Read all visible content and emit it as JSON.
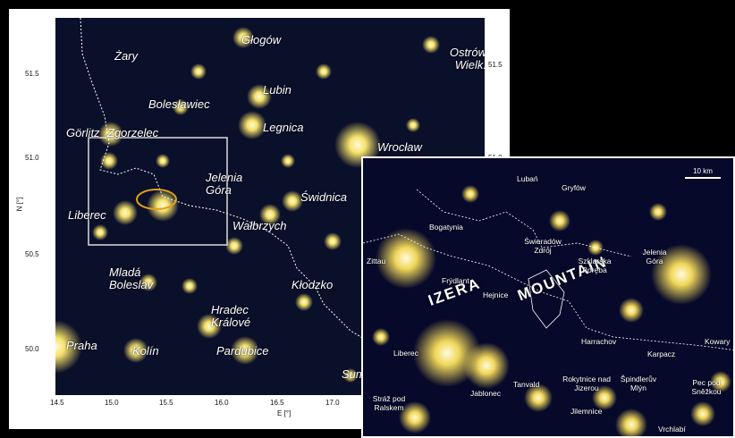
{
  "main_map": {
    "cities": [
      "Żary",
      "Głogów",
      "Ostrów Wielk.",
      "Lubin",
      "Bolesławiec",
      "Görlitz",
      "Zgorzelec",
      "Legnica",
      "Wrocław",
      "Jelenia Góra",
      "Świdnica",
      "Liberec",
      "Wałbrzych",
      "Mladá Boleslav",
      "Kłodzko",
      "Hradec Králové",
      "Praha",
      "Kolín",
      "Pardubice",
      "Sum"
    ],
    "x_ticks": [
      "14.5",
      "15.0",
      "15.5",
      "16.0",
      "16.5",
      "17.0"
    ],
    "y_ticks_left": [
      "51.5",
      "51.0",
      "50.5",
      "50.0"
    ],
    "y_ticks_right": [
      "51.5",
      "51.0"
    ],
    "xlabel": "E [°]",
    "ylabel": "N [°]"
  },
  "inset": {
    "scale": "10 km",
    "mountain_words": [
      "IZERA",
      "MOUNTAIN"
    ],
    "places": [
      "Lubań",
      "Gryfów",
      "Bogatynia",
      "Świeradów Zdrój",
      "Zittau",
      "Frýdlant",
      "Hejnice",
      "Szklarska Poręba",
      "Jelenia Góra",
      "Harrachov",
      "Karpacz",
      "Kowary",
      "Liberec",
      "Tanvald",
      "Rokytnice nad Jizerou",
      "Špindlerův Mlýn",
      "Pec pod Sněžkou",
      "Jablonec",
      "Stráž pod Ralskem",
      "Jilemnice",
      "Vrchlabí"
    ]
  }
}
